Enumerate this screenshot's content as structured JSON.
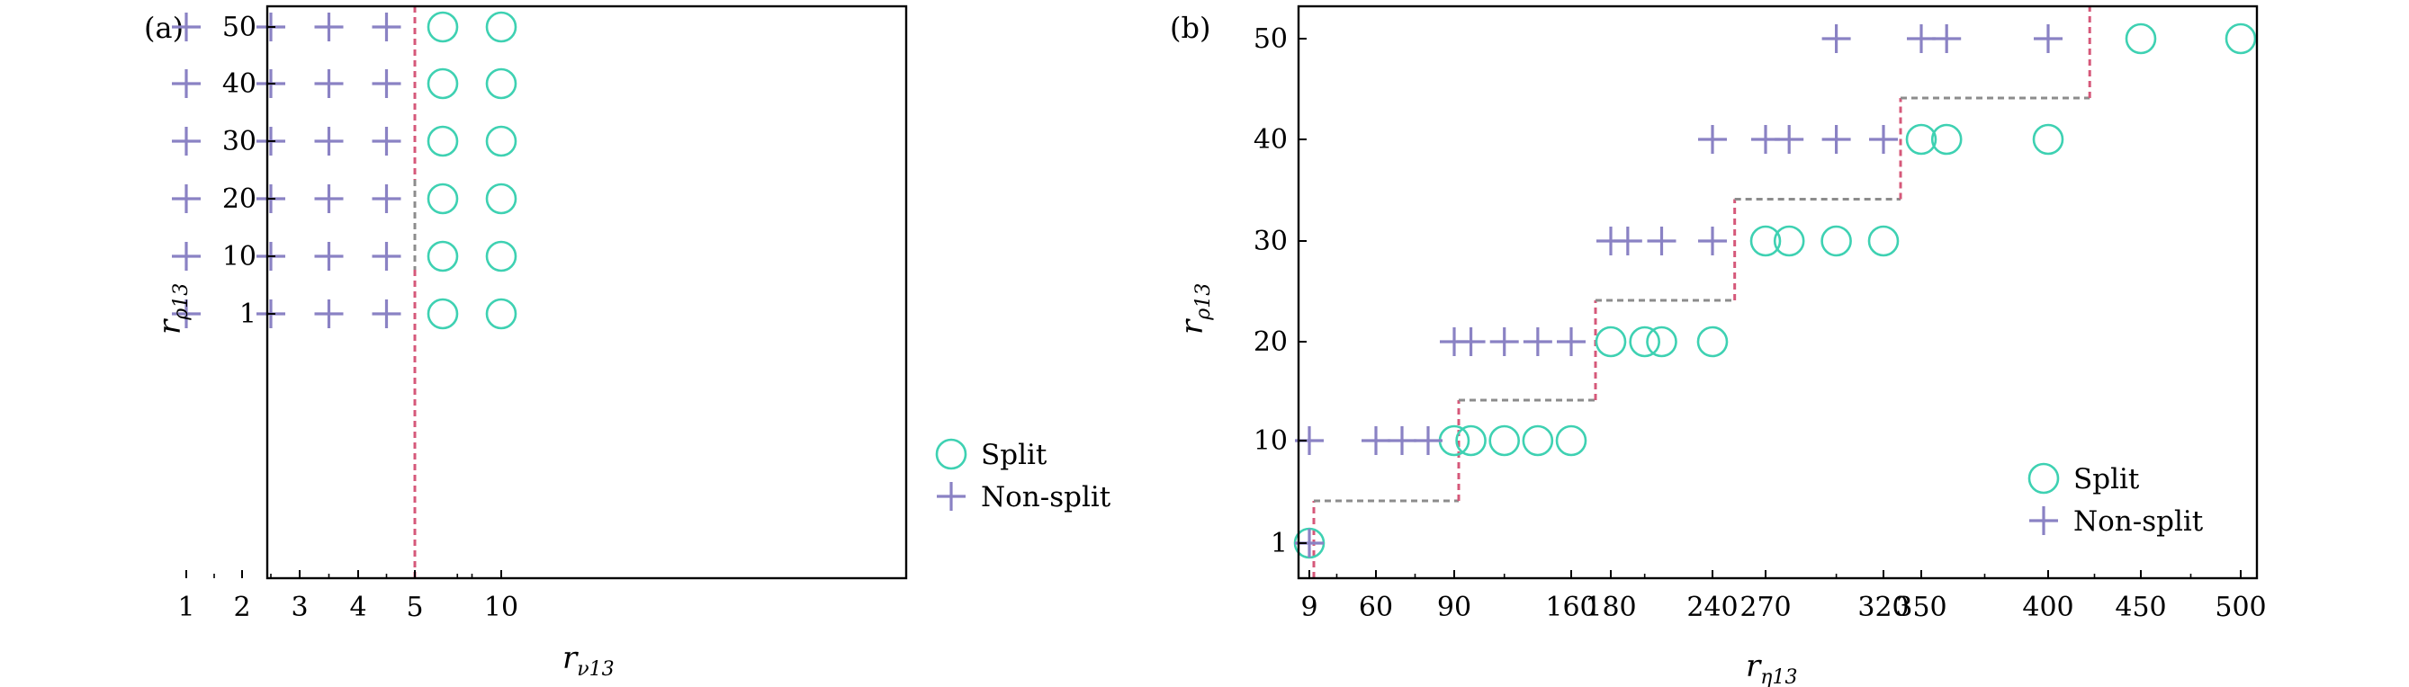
{
  "colors": {
    "split": "#3ed1b2",
    "nonsplit": "#8a82c4",
    "boundary_red": "#d6587a",
    "boundary_gray": "#8c8c8c",
    "axis": "#000000"
  },
  "legend": {
    "split": "Split",
    "nonsplit": "Non-split"
  },
  "chart_data": [
    {
      "panel_label": "(a)",
      "type": "scatter",
      "xlabel": {
        "main": "r",
        "sub": "ν13"
      },
      "ylabel": {
        "main": "r",
        "sub": "ρ13"
      },
      "x_ticks": [
        "1",
        "2",
        "3",
        "4",
        "5",
        "10"
      ],
      "y_ticks": [
        "1",
        "10",
        "20",
        "30",
        "40",
        "50"
      ],
      "x_scale": "categorical",
      "y_scale": "categorical",
      "grid": false,
      "legend_position": "outside-right",
      "series": [
        {
          "name": "Split",
          "marker": "circle",
          "points": [
            [
              6,
              1
            ],
            [
              6,
              10
            ],
            [
              6,
              20
            ],
            [
              6,
              30
            ],
            [
              6,
              40
            ],
            [
              6,
              50
            ],
            [
              10,
              1
            ],
            [
              10,
              10
            ],
            [
              10,
              20
            ],
            [
              10,
              30
            ],
            [
              10,
              40
            ],
            [
              10,
              50
            ]
          ]
        },
        {
          "name": "Non-split",
          "marker": "plus",
          "points": [
            [
              1,
              1
            ],
            [
              1,
              10
            ],
            [
              1,
              20
            ],
            [
              1,
              30
            ],
            [
              1,
              40
            ],
            [
              1,
              50
            ],
            [
              2.5,
              1
            ],
            [
              2.5,
              10
            ],
            [
              2.5,
              20
            ],
            [
              2.5,
              30
            ],
            [
              2.5,
              40
            ],
            [
              2.5,
              50
            ],
            [
              3.5,
              1
            ],
            [
              3.5,
              10
            ],
            [
              3.5,
              20
            ],
            [
              3.5,
              30
            ],
            [
              3.5,
              40
            ],
            [
              3.5,
              50
            ],
            [
              4.5,
              1
            ],
            [
              4.5,
              10
            ],
            [
              4.5,
              20
            ],
            [
              4.5,
              30
            ],
            [
              4.5,
              40
            ],
            [
              4.5,
              50
            ]
          ]
        }
      ],
      "boundary": {
        "type": "vertical",
        "x": 5
      }
    },
    {
      "panel_label": "(b)",
      "type": "scatter",
      "xlabel": {
        "main": "r",
        "sub": "η13"
      },
      "ylabel": {
        "main": "r",
        "sub": "ρ13"
      },
      "x_ticks": [
        "9",
        "60",
        "90",
        "160",
        "180",
        "240",
        "270",
        "320",
        "350",
        "400",
        "450",
        "500"
      ],
      "y_ticks": [
        "1",
        "10",
        "20",
        "30",
        "40",
        "50"
      ],
      "x_scale": "categorical",
      "y_scale": "categorical",
      "grid": false,
      "legend_position": "bottom-right",
      "series": [
        {
          "name": "Split",
          "marker": "circle",
          "points": [
            [
              9,
              1
            ],
            [
              90,
              10
            ],
            [
              100,
              10
            ],
            [
              120,
              10
            ],
            [
              140,
              10
            ],
            [
              160,
              10
            ],
            [
              180,
              20
            ],
            [
              200,
              20
            ],
            [
              210,
              20
            ],
            [
              240,
              20
            ],
            [
              270,
              30
            ],
            [
              280,
              30
            ],
            [
              300,
              30
            ],
            [
              320,
              30
            ],
            [
              350,
              40
            ],
            [
              360,
              40
            ],
            [
              400,
              40
            ],
            [
              450,
              50
            ],
            [
              500,
              50
            ]
          ]
        },
        {
          "name": "Non-split",
          "marker": "plus",
          "points": [
            [
              9,
              1
            ],
            [
              9,
              10
            ],
            [
              60,
              10
            ],
            [
              70,
              10
            ],
            [
              80,
              10
            ],
            [
              90,
              20
            ],
            [
              100,
              20
            ],
            [
              120,
              20
            ],
            [
              140,
              20
            ],
            [
              160,
              20
            ],
            [
              180,
              30
            ],
            [
              190,
              30
            ],
            [
              210,
              30
            ],
            [
              240,
              30
            ],
            [
              240,
              40
            ],
            [
              270,
              40
            ],
            [
              280,
              40
            ],
            [
              300,
              40
            ],
            [
              320,
              40
            ],
            [
              300,
              50
            ],
            [
              350,
              50
            ],
            [
              360,
              50
            ],
            [
              400,
              50
            ]
          ]
        }
      ],
      "boundary": {
        "type": "staircase",
        "steps": [
          {
            "x": 9,
            "y": 1
          },
          {
            "x": 90,
            "y": 10
          },
          {
            "x": 170,
            "y": 20
          },
          {
            "x": 250,
            "y": 30
          },
          {
            "x": 330,
            "y": 40
          },
          {
            "x": 420,
            "y": 50
          }
        ]
      }
    }
  ]
}
